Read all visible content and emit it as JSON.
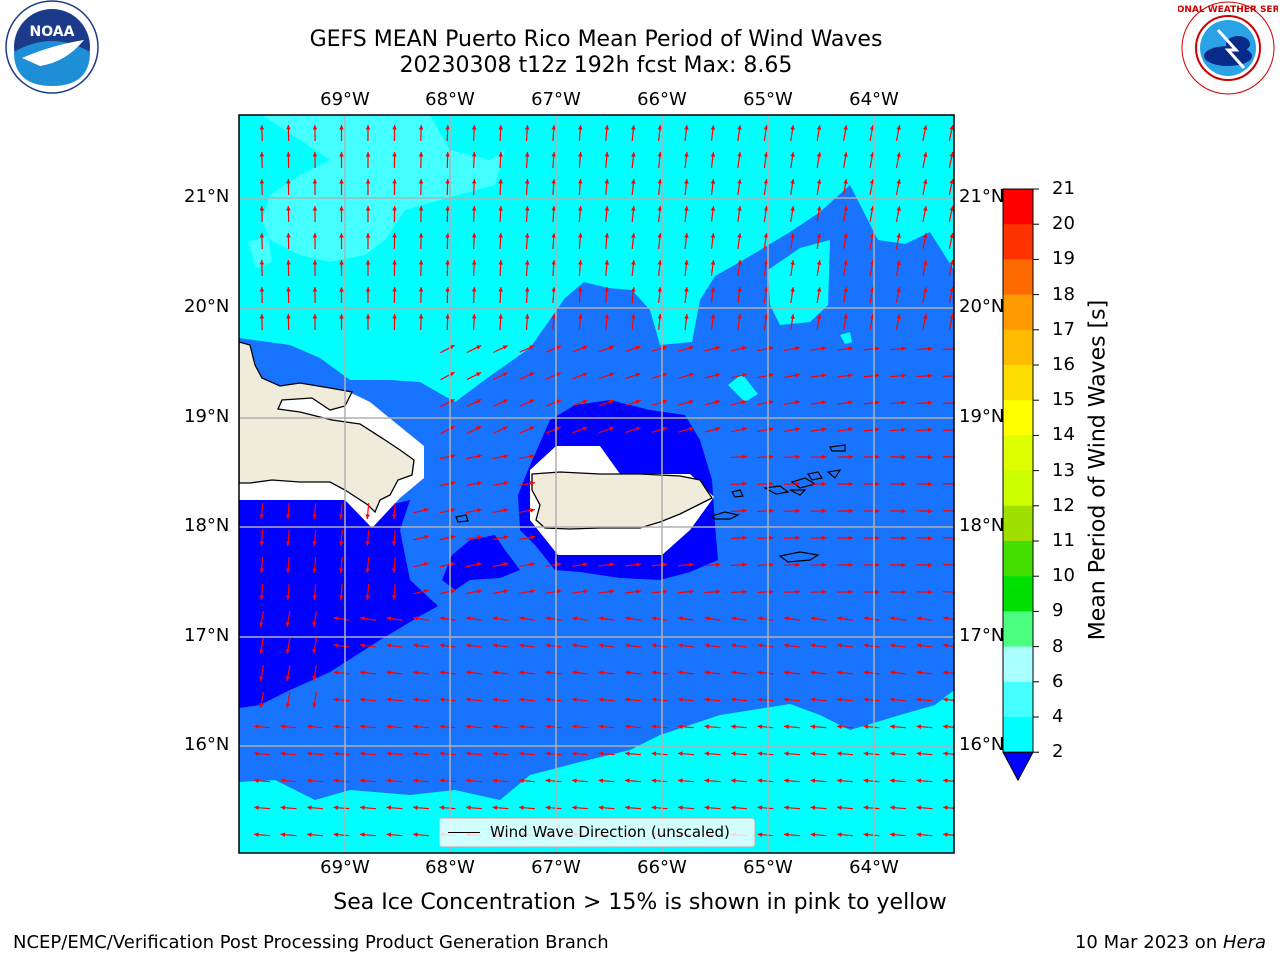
{
  "header": {
    "title_line1": "GEFS MEAN Puerto Rico Mean Period of Wind Waves",
    "title_line2": "20230308 t12z 192h fcst   Max: 8.65"
  },
  "map": {
    "lon_labels": [
      "69°W",
      "68°W",
      "67°W",
      "66°W",
      "65°W",
      "64°W"
    ],
    "lat_labels": [
      "21°N",
      "20°N",
      "19°N",
      "18°N",
      "17°N",
      "16°N"
    ],
    "legend_label": "Wind Wave Direction (unscaled)",
    "arrow_color": "#ff0000",
    "land_color": "#efecdc",
    "grid": true
  },
  "colorbar": {
    "label": "Mean Period of Wind Waves [s]",
    "ticks": [
      "2",
      "4",
      "6",
      "8",
      "9",
      "10",
      "11",
      "12",
      "13",
      "14",
      "15",
      "16",
      "17",
      "18",
      "19",
      "20",
      "21"
    ],
    "colors": [
      "#1874ff",
      "#00ffff",
      "#44ffff",
      "#aaffff",
      "#4dff80",
      "#00e000",
      "#44dd00",
      "#a0e000",
      "#ccff00",
      "#ddff00",
      "#ffff00",
      "#ffdd00",
      "#ffbb00",
      "#ff9900",
      "#ff6a00",
      "#ff3300",
      "#ff0000"
    ]
  },
  "footer": {
    "note": "Sea Ice Concentration > 15% is shown in pink to yellow",
    "left": "NCEP/EMC/Verification Post Processing Product Generation Branch",
    "right_prefix": "10 Mar 2023 on ",
    "right_machine": "Hera"
  },
  "logos": {
    "noaa_text": "NOAA",
    "nws_text": "NATIONAL WEATHER SERVICE"
  }
}
